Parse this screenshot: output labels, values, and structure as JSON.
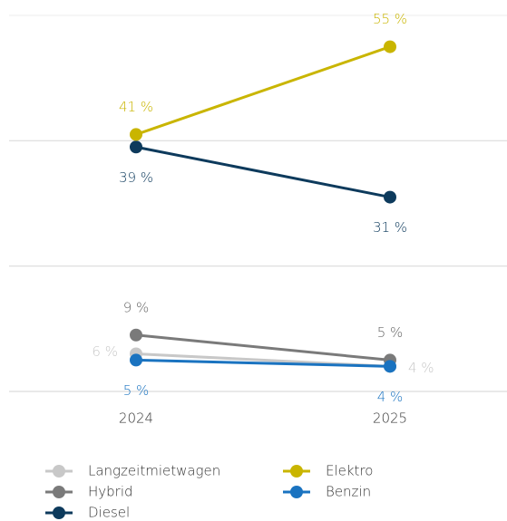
{
  "chart_data": {
    "type": "line",
    "categories": [
      "2024",
      "2025"
    ],
    "series": [
      {
        "name": "Langzeitmietwagen",
        "color": "#c8c8c8",
        "values": [
          6,
          4
        ],
        "value_labels": [
          "6 %",
          "4 %"
        ]
      },
      {
        "name": "Elektro",
        "color": "#c9b500",
        "values": [
          41,
          55
        ],
        "value_labels": [
          "41 %",
          "55 %"
        ]
      },
      {
        "name": "Hybrid",
        "color": "#7a7a7a",
        "values": [
          9,
          5
        ],
        "value_labels": [
          "9 %",
          "5 %"
        ]
      },
      {
        "name": "Benzin",
        "color": "#1a73c0",
        "values": [
          5,
          4
        ],
        "value_labels": [
          "5 %",
          "4 %"
        ]
      },
      {
        "name": "Diesel",
        "color": "#0d3a5c",
        "values": [
          39,
          31
        ],
        "value_labels": [
          "39 %",
          "31 %"
        ]
      }
    ],
    "ylim": [
      0,
      60
    ],
    "yticks": [
      0,
      20,
      40,
      60
    ],
    "grid": true
  }
}
